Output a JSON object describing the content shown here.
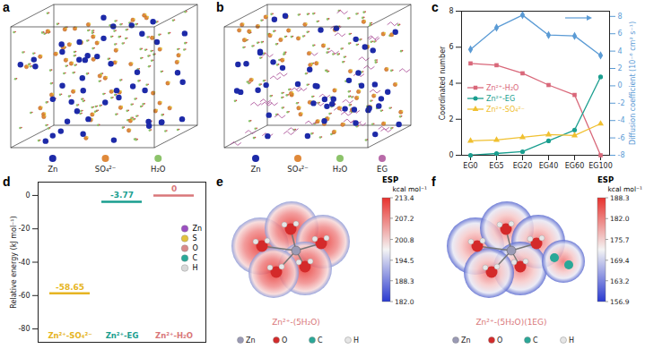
{
  "chart_data": [
    {
      "type": "line",
      "title": "c",
      "categories": [
        "EG0",
        "EG5",
        "EG20",
        "EG40",
        "EG60",
        "EG100"
      ],
      "ylabel": "Coordinated number",
      "ylim": [
        0,
        8
      ],
      "yticks": [
        0,
        2,
        4,
        6,
        8
      ],
      "y2label": "Diffusion coefficient (10⁻⁶ cm² s⁻¹)",
      "y2lim": [
        -8,
        8.6
      ],
      "y2ticks": [
        -8,
        -6,
        -4,
        -2,
        0,
        2,
        4,
        6,
        8
      ],
      "legend": "left",
      "series": [
        {
          "name": "Zn²⁺-H₂O",
          "color": "#d9687a",
          "marker": "square",
          "values": [
            5.1,
            5.0,
            4.55,
            3.9,
            3.35,
            0
          ]
        },
        {
          "name": "Zn²⁺-EG",
          "color": "#1a9e8f",
          "marker": "circle",
          "values": [
            0,
            0.1,
            0.2,
            0.8,
            1.4,
            4.35
          ]
        },
        {
          "name": "Zn²⁺-SO₄²⁻",
          "color": "#f0c030",
          "marker": "triangle",
          "values": [
            0.8,
            0.85,
            1.0,
            1.15,
            1.1,
            1.75
          ]
        },
        {
          "color": "#5b9bd5",
          "marker": "diamond",
          "axis": "y2",
          "values": [
            4.2,
            6.7,
            8.15,
            5.85,
            5.75,
            3.5
          ]
        }
      ]
    },
    {
      "type": "level",
      "title": "d",
      "categories": [
        "Zn²⁺-SO₄²⁻",
        "Zn²⁺-EG",
        "Zn²⁺-H₂O"
      ],
      "values": [
        -58.65,
        -3.77,
        0
      ],
      "colors": [
        "#e6b422",
        "#1a9e8f",
        "#d9777a"
      ],
      "ylabel": "Relative energy (kJ mol⁻¹)",
      "ylim": [
        -88,
        8
      ],
      "yticks": [
        -80,
        -60,
        -40,
        -20,
        0
      ],
      "data_labels": true,
      "tick_labels": "y"
    }
  ],
  "figure_elements": {
    "a": {
      "title": "a",
      "key": [
        {
          "label": "Zn",
          "color": "#1d2aa8"
        },
        {
          "label": "SO₄²⁻",
          "color": "#e0893a"
        },
        {
          "label": "H₂O",
          "color": "#8cc36a"
        }
      ]
    },
    "b": {
      "title": "b",
      "key": [
        {
          "label": "Zn",
          "color": "#1d2aa8"
        },
        {
          "label": "SO₄²⁻",
          "color": "#e0893a"
        },
        {
          "label": "H₂O",
          "color": "#8cc36a"
        },
        {
          "label": "EG",
          "color": "#b86aa8"
        }
      ]
    },
    "d_key": [
      {
        "label": "Zn",
        "color": "#9b4fc1"
      },
      {
        "label": "S",
        "color": "#e3c23c"
      },
      {
        "label": "O",
        "color": "#d98a8a"
      },
      {
        "label": "C",
        "color": "#2aa898"
      },
      {
        "label": "H",
        "color": "#d8d8d8"
      }
    ],
    "e": {
      "title": "e",
      "caption": "Zn²⁺-(5H₂O)",
      "caption_color": "#d9777a",
      "colorbar": {
        "title": "ESP",
        "unit": "kcal mol⁻¹",
        "range": [
          182,
          213.4
        ],
        "ticks": [
          213.4,
          207.2,
          200.8,
          194.5,
          188.3,
          {
            "value": 182,
            "label": "182.0"
          }
        ]
      },
      "key": [
        {
          "label": "Zn",
          "color": "#9a9ab5"
        },
        {
          "label": "O",
          "color": "#d42a2a"
        },
        {
          "label": "C",
          "color": "#2aa898"
        },
        {
          "label": "H",
          "color": "#e6e6e6"
        }
      ]
    },
    "f": {
      "title": "f",
      "caption": "Zn²⁺-(5H₂O)(1EG)",
      "caption_color": "#d9777a",
      "colorbar": {
        "title": "ESP",
        "unit": "kcal mol⁻¹",
        "range": [
          156.9,
          188.3
        ],
        "ticks": [
          188.3,
          {
            "value": 182,
            "label": "182.0"
          },
          175.7,
          169.4,
          163.2,
          156.9
        ]
      },
      "key": [
        {
          "label": "Zn",
          "color": "#9a9ab5"
        },
        {
          "label": "O",
          "color": "#d42a2a"
        },
        {
          "label": "C",
          "color": "#2aa898"
        },
        {
          "label": "H",
          "color": "#e6e6e6"
        }
      ]
    }
  }
}
